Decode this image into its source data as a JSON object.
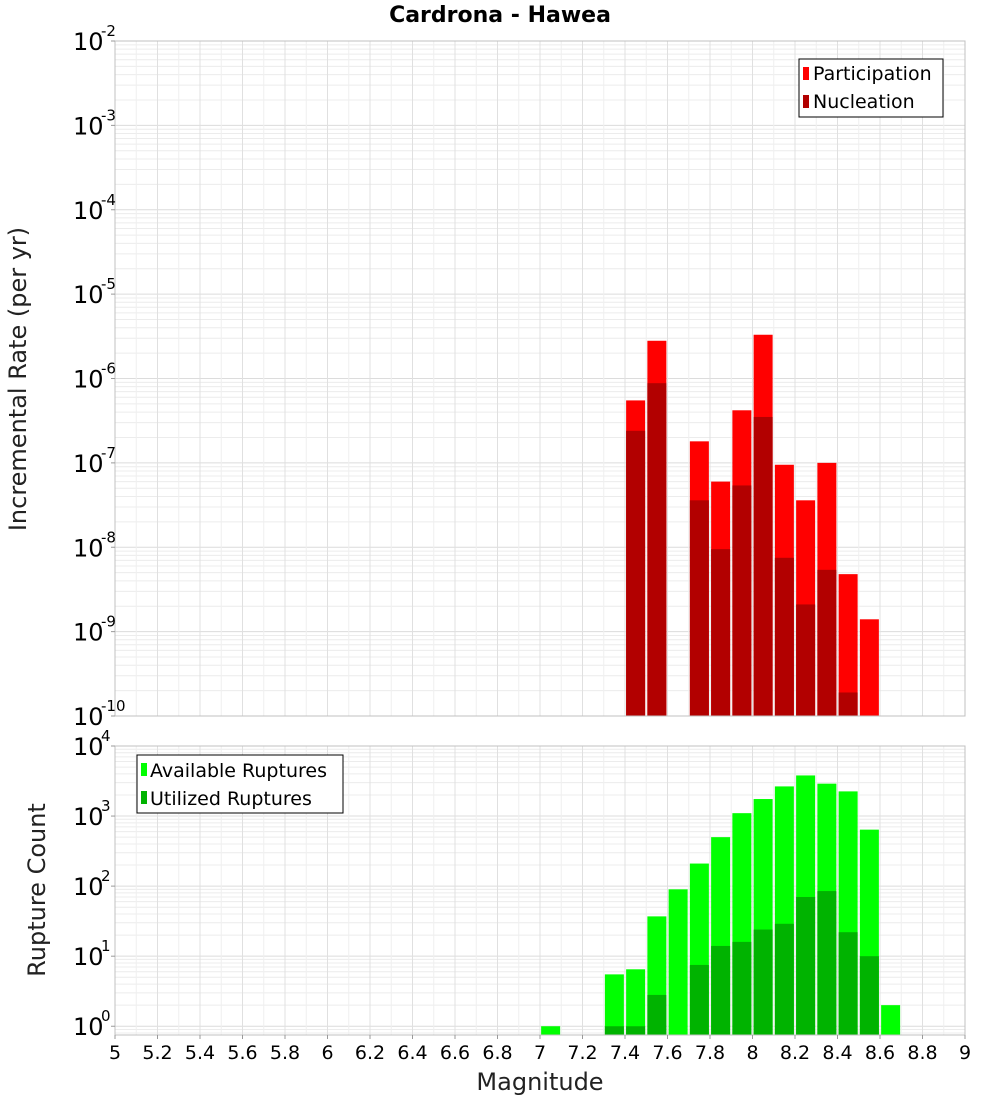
{
  "chart_data": [
    {
      "type": "bar",
      "panel": "top",
      "title": "Cardrona - Hawea",
      "ylabel": "Incremental Rate (per yr)",
      "yscale": "log",
      "ylim": [
        1e-10,
        0.01
      ],
      "yticks": [
        {
          "base": "10",
          "exp": "-10",
          "value": 1e-10
        },
        {
          "base": "10",
          "exp": "-9",
          "value": 1e-09
        },
        {
          "base": "10",
          "exp": "-8",
          "value": 1e-08
        },
        {
          "base": "10",
          "exp": "-7",
          "value": 1e-07
        },
        {
          "base": "10",
          "exp": "-6",
          "value": 1e-06
        },
        {
          "base": "10",
          "exp": "-5",
          "value": 1e-05
        },
        {
          "base": "10",
          "exp": "-4",
          "value": 0.0001
        },
        {
          "base": "10",
          "exp": "-3",
          "value": 0.001
        },
        {
          "base": "10",
          "exp": "-2",
          "value": 0.01
        }
      ],
      "legend_position": "top-right",
      "grid": true,
      "x": [
        7.45,
        7.55,
        7.75,
        7.85,
        7.95,
        8.05,
        8.15,
        8.25,
        8.35,
        8.45,
        8.55
      ],
      "series": [
        {
          "name": "Participation",
          "color": "#ff0000",
          "values": [
            5.5e-07,
            2.8e-06,
            1.8e-07,
            6e-08,
            4.2e-07,
            3.3e-06,
            9.5e-08,
            3.6e-08,
            1e-07,
            4.8e-09,
            1.4e-09
          ]
        },
        {
          "name": "Nucleation",
          "color": "#b20000",
          "values": [
            2.4e-07,
            8.8e-07,
            3.6e-08,
            9.5e-09,
            5.4e-08,
            3.5e-07,
            7.5e-09,
            2.1e-09,
            5.4e-09,
            1.9e-10,
            null
          ]
        }
      ]
    },
    {
      "type": "bar",
      "panel": "bottom",
      "ylabel": "Rupture Count",
      "xlabel": "Magnitude",
      "yscale": "log",
      "ylim": [
        0.75,
        10000
      ],
      "yticks": [
        {
          "base": "10",
          "exp": "0",
          "value": 1
        },
        {
          "base": "10",
          "exp": "1",
          "value": 10
        },
        {
          "base": "10",
          "exp": "2",
          "value": 100
        },
        {
          "base": "10",
          "exp": "3",
          "value": 1000
        },
        {
          "base": "10",
          "exp": "4",
          "value": 10000
        }
      ],
      "xlim": [
        5,
        9
      ],
      "xticks": [
        "5",
        "5.2",
        "5.4",
        "5.6",
        "5.8",
        "6",
        "6.2",
        "6.4",
        "6.6",
        "6.8",
        "7",
        "7.2",
        "7.4",
        "7.6",
        "7.8",
        "8",
        "8.2",
        "8.4",
        "8.6",
        "8.8",
        "9"
      ],
      "legend_position": "top-left",
      "grid": true,
      "x": [
        7.05,
        7.35,
        7.45,
        7.55,
        7.65,
        7.75,
        7.85,
        7.95,
        8.05,
        8.15,
        8.25,
        8.35,
        8.45,
        8.55,
        8.65
      ],
      "series": [
        {
          "name": "Available Ruptures",
          "color": "#00ff00",
          "values": [
            1,
            5.5,
            6.5,
            37,
            90,
            210,
            500,
            1100,
            1750,
            2650,
            3800,
            2900,
            2250,
            640,
            2
          ]
        },
        {
          "name": "Utilized Ruptures",
          "color": "#00b300",
          "values": [
            null,
            1,
            1,
            2.8,
            null,
            7.5,
            14,
            16,
            24,
            29,
            70,
            85,
            22,
            10,
            null
          ]
        }
      ]
    }
  ]
}
